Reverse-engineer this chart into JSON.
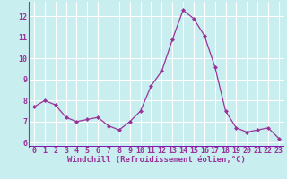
{
  "x": [
    0,
    1,
    2,
    3,
    4,
    5,
    6,
    7,
    8,
    9,
    10,
    11,
    12,
    13,
    14,
    15,
    16,
    17,
    18,
    19,
    20,
    21,
    22,
    23
  ],
  "y": [
    7.7,
    8.0,
    7.8,
    7.2,
    7.0,
    7.1,
    7.2,
    6.8,
    6.6,
    7.0,
    7.5,
    8.7,
    9.4,
    10.9,
    12.3,
    11.9,
    11.1,
    9.6,
    7.5,
    6.7,
    6.5,
    6.6,
    6.7,
    6.2
  ],
  "line_color": "#993399",
  "marker": "D",
  "marker_size": 2.0,
  "line_width": 0.9,
  "xlabel": "Windchill (Refroidissement éolien,°C)",
  "xlim": [
    -0.5,
    23.5
  ],
  "ylim": [
    5.8,
    12.7
  ],
  "yticks": [
    6,
    7,
    8,
    9,
    10,
    11,
    12
  ],
  "xticks": [
    0,
    1,
    2,
    3,
    4,
    5,
    6,
    7,
    8,
    9,
    10,
    11,
    12,
    13,
    14,
    15,
    16,
    17,
    18,
    19,
    20,
    21,
    22,
    23
  ],
  "bg_color": "#c8eef0",
  "grid_color": "#ffffff",
  "tick_color": "#993399",
  "label_color": "#993399",
  "xlabel_fontsize": 6.5,
  "tick_fontsize": 6.0,
  "xbar_color": "#7700aa"
}
